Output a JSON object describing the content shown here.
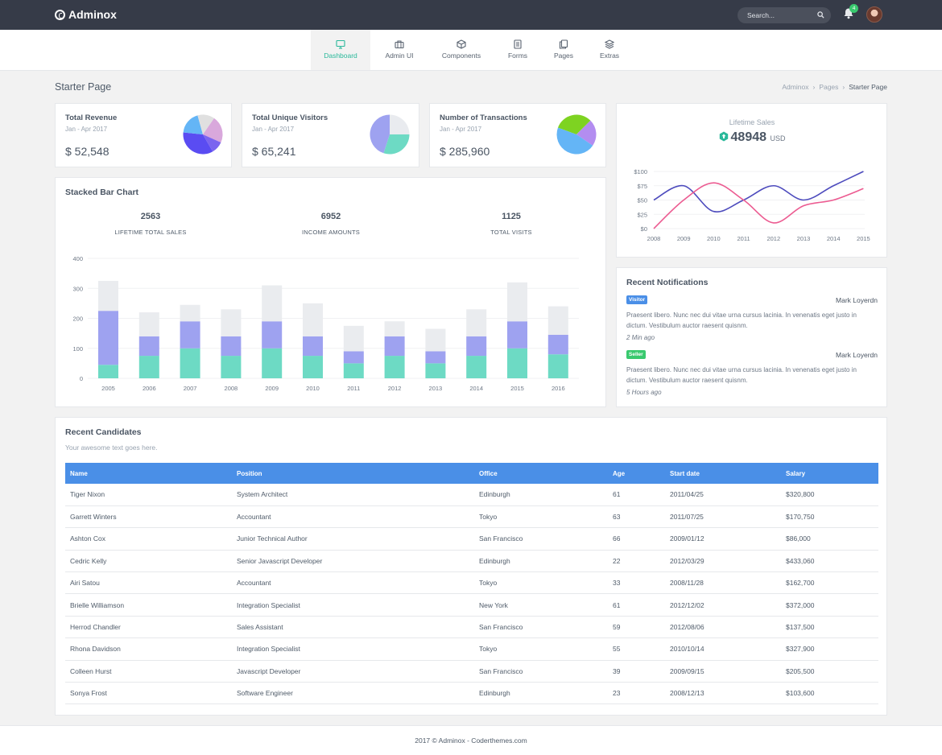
{
  "app": {
    "name": "Adminox"
  },
  "header": {
    "search_placeholder": "Search...",
    "notifications_count": "4",
    "icons": {
      "search": "search-icon",
      "bell": "bell-icon"
    }
  },
  "nav": [
    {
      "label": "Dashboard",
      "icon": "monitor-icon",
      "active": true
    },
    {
      "label": "Admin UI",
      "icon": "briefcase-icon"
    },
    {
      "label": "Components",
      "icon": "box-icon"
    },
    {
      "label": "Forms",
      "icon": "file-icon"
    },
    {
      "label": "Pages",
      "icon": "copy-icon"
    },
    {
      "label": "Extras",
      "icon": "layers-icon"
    }
  ],
  "page": {
    "title": "Starter Page",
    "breadcrumb": [
      "Adminox",
      "Pages",
      "Starter Page"
    ]
  },
  "stats": [
    {
      "title": "Total Revenue",
      "period": "Jan - Apr 2017",
      "value": "$ 52,548"
    },
    {
      "title": "Total Unique Visitors",
      "period": "Jan - Apr 2017",
      "value": "$ 65,241"
    },
    {
      "title": "Number of Transactions",
      "period": "Jan - Apr 2017",
      "value": "$ 285,960"
    }
  ],
  "stacked_chart": {
    "title": "Stacked Bar Chart",
    "summary": [
      {
        "value": "2563",
        "label": "LIFETIME TOTAL SALES"
      },
      {
        "value": "6952",
        "label": "INCOME AMOUNTS"
      },
      {
        "value": "1125",
        "label": "TOTAL VISITS"
      }
    ]
  },
  "lifetime_sales": {
    "title": "Lifetime Sales",
    "value": "48948",
    "unit": "USD"
  },
  "notifications": {
    "title": "Recent Notifications",
    "items": [
      {
        "tag": "Visitor",
        "name": "Mark Loyerdn",
        "text": "Praesent libero. Nunc nec dui vitae urna cursus lacinia. In venenatis eget justo in dictum. Vestibulum auctor raesent quisnm.",
        "time": "2 Min ago"
      },
      {
        "tag": "Seller",
        "name": "Mark Loyerdn",
        "text": "Praesent libero. Nunc nec dui vitae urna cursus lacinia. In venenatis eget justo in dictum. Vestibulum auctor raesent quisnm.",
        "time": "5 Hours ago"
      }
    ]
  },
  "candidates": {
    "title": "Recent Candidates",
    "subtitle": "Your awesome text goes here.",
    "columns": [
      "Name",
      "Position",
      "Office",
      "Age",
      "Start date",
      "Salary"
    ],
    "rows": [
      [
        "Tiger Nixon",
        "System Architect",
        "Edinburgh",
        "61",
        "2011/04/25",
        "$320,800"
      ],
      [
        "Garrett Winters",
        "Accountant",
        "Tokyo",
        "63",
        "2011/07/25",
        "$170,750"
      ],
      [
        "Ashton Cox",
        "Junior Technical Author",
        "San Francisco",
        "66",
        "2009/01/12",
        "$86,000"
      ],
      [
        "Cedric Kelly",
        "Senior Javascript Developer",
        "Edinburgh",
        "22",
        "2012/03/29",
        "$433,060"
      ],
      [
        "Airi Satou",
        "Accountant",
        "Tokyo",
        "33",
        "2008/11/28",
        "$162,700"
      ],
      [
        "Brielle Williamson",
        "Integration Specialist",
        "New York",
        "61",
        "2012/12/02",
        "$372,000"
      ],
      [
        "Herrod Chandler",
        "Sales Assistant",
        "San Francisco",
        "59",
        "2012/08/06",
        "$137,500"
      ],
      [
        "Rhona Davidson",
        "Integration Specialist",
        "Tokyo",
        "55",
        "2010/10/14",
        "$327,900"
      ],
      [
        "Colleen Hurst",
        "Javascript Developer",
        "San Francisco",
        "39",
        "2009/09/15",
        "$205,500"
      ],
      [
        "Sonya Frost",
        "Software Engineer",
        "Edinburgh",
        "23",
        "2008/12/13",
        "$103,600"
      ]
    ]
  },
  "footer": {
    "text": "2017 © Adminox - Coderthemes.com"
  },
  "colors": {
    "accent": "#29b89a",
    "table_header": "#4a8fe7",
    "visitor_tag": "#4a8fe7",
    "seller_tag": "#39c96e",
    "bar_green": "#6ddac4",
    "bar_purple": "#9ea2f0",
    "bar_grey": "#eaecef",
    "line_blue": "#4d4bbd",
    "line_pink": "#ec5b91"
  },
  "chart_data": [
    {
      "type": "pie",
      "slices": [
        {
          "value": 35,
          "color": "#5a4cf2"
        },
        {
          "value": 19,
          "color": "#64b5f6"
        },
        {
          "value": 14,
          "color": "#e0e0e0"
        },
        {
          "value": 22,
          "color": "#d9a8dc"
        },
        {
          "value": 10,
          "color": "#7b64ef"
        }
      ]
    },
    {
      "type": "pie",
      "slices": [
        {
          "value": 25,
          "color": "#e9ebef"
        },
        {
          "value": 30,
          "color": "#6ddac4"
        },
        {
          "value": 45,
          "color": "#9ea2f0"
        }
      ]
    },
    {
      "type": "pie",
      "slices": [
        {
          "value": 32,
          "color": "#7ed321"
        },
        {
          "value": 22,
          "color": "#b38df0"
        },
        {
          "value": 46,
          "color": "#64b5f6"
        }
      ]
    },
    {
      "type": "bar",
      "stacked": true,
      "categories": [
        "2005",
        "2006",
        "2007",
        "2008",
        "2009",
        "2010",
        "2011",
        "2012",
        "2013",
        "2014",
        "2015",
        "2016"
      ],
      "series": [
        {
          "values": [
            45,
            75,
            100,
            75,
            100,
            75,
            50,
            75,
            50,
            75,
            100,
            80
          ]
        },
        {
          "values": [
            180,
            65,
            90,
            65,
            90,
            65,
            40,
            65,
            40,
            65,
            90,
            65
          ]
        },
        {
          "values": [
            100,
            80,
            55,
            90,
            120,
            110,
            85,
            50,
            75,
            90,
            130,
            95
          ]
        }
      ],
      "ylim": [
        0,
        400
      ],
      "yticks": [
        0,
        100,
        200,
        300,
        400
      ],
      "grid": true
    },
    {
      "type": "line",
      "x": [
        "2008",
        "2009",
        "2010",
        "2011",
        "2012",
        "2013",
        "2014",
        "2015"
      ],
      "series": [
        {
          "values": [
            50,
            75,
            30,
            50,
            75,
            50,
            75,
            100
          ]
        },
        {
          "values": [
            0,
            50,
            80,
            50,
            10,
            40,
            50,
            70
          ]
        }
      ],
      "ylim": [
        0,
        100
      ],
      "yticks": [
        "$0",
        "$25",
        "$50",
        "$75",
        "$100"
      ],
      "grid": true
    }
  ]
}
